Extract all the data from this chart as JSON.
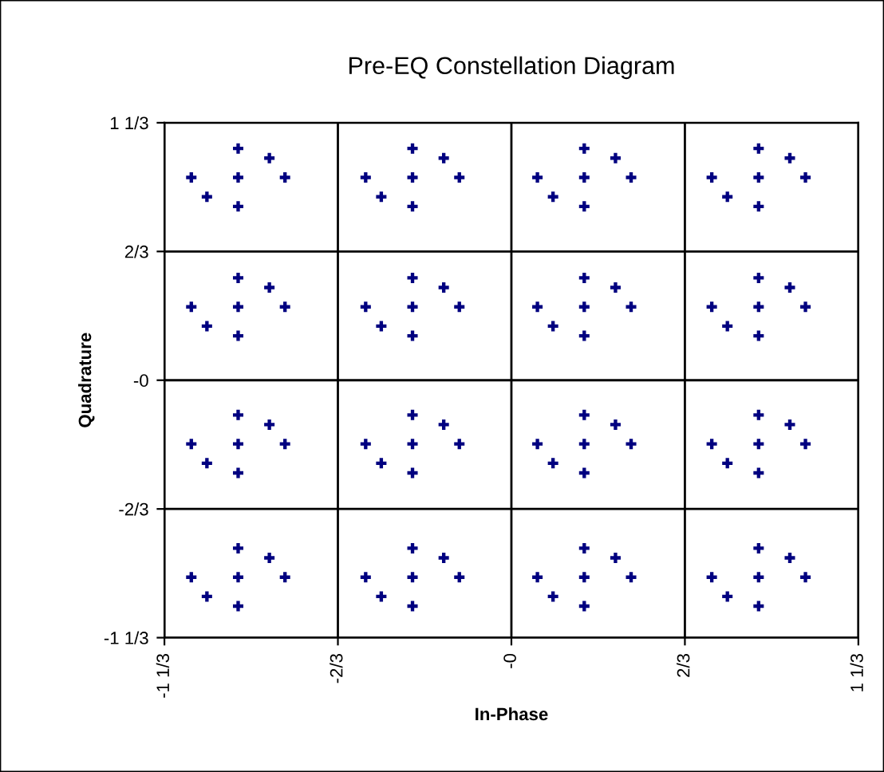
{
  "chart_data": {
    "type": "scatter",
    "title": "Pre-EQ Constellation Diagram",
    "xlabel": "In-Phase",
    "ylabel": "Quadrature",
    "xlim": [
      -1.3333,
      1.3333
    ],
    "ylim": [
      -1.3333,
      1.3333
    ],
    "xticks": [
      {
        "value": -1.3333,
        "label": "-1 1/3"
      },
      {
        "value": -0.6667,
        "label": "-2/3"
      },
      {
        "value": 0,
        "label": "-0"
      },
      {
        "value": 0.6667,
        "label": "2/3"
      },
      {
        "value": 1.3333,
        "label": "1 1/3"
      }
    ],
    "yticks": [
      {
        "value": -1.3333,
        "label": "-1 1/3"
      },
      {
        "value": -0.6667,
        "label": "-2/3"
      },
      {
        "value": 0,
        "label": "-0"
      },
      {
        "value": 0.6667,
        "label": "2/3"
      },
      {
        "value": 1.3333,
        "label": "1 1/3"
      }
    ],
    "grid": true,
    "marker": "cross",
    "legend": false,
    "series": [
      {
        "color": "#000080",
        "x": [
          -1.05,
          -1.23,
          -0.87,
          -1.05,
          -1.05,
          -0.93,
          -1.17,
          -0.38,
          -0.56,
          -0.2,
          -0.38,
          -0.38,
          -0.26,
          -0.5,
          0.28,
          0.1,
          0.46,
          0.28,
          0.28,
          0.4,
          0.16,
          0.95,
          0.77,
          1.13,
          0.95,
          0.95,
          1.07,
          0.83,
          -1.05,
          -1.23,
          -0.87,
          -1.05,
          -1.05,
          -0.93,
          -1.17,
          -0.38,
          -0.56,
          -0.2,
          -0.38,
          -0.38,
          -0.26,
          -0.5,
          0.28,
          0.1,
          0.46,
          0.28,
          0.28,
          0.4,
          0.16,
          0.95,
          0.77,
          1.13,
          0.95,
          0.95,
          1.07,
          0.83,
          -1.05,
          -1.23,
          -0.87,
          -1.05,
          -1.05,
          -0.93,
          -1.17,
          -0.38,
          -0.56,
          -0.2,
          -0.38,
          -0.38,
          -0.26,
          -0.5,
          0.28,
          0.1,
          0.46,
          0.28,
          0.28,
          0.4,
          0.16,
          0.95,
          0.77,
          1.13,
          0.95,
          0.95,
          1.07,
          0.83,
          -1.05,
          -1.23,
          -0.87,
          -1.05,
          -1.05,
          -0.93,
          -1.17,
          -0.38,
          -0.56,
          -0.2,
          -0.38,
          -0.38,
          -0.26,
          -0.5,
          0.28,
          0.1,
          0.46,
          0.28,
          0.28,
          0.4,
          0.16,
          0.95,
          0.77,
          1.13,
          0.95,
          0.95,
          1.07,
          0.83
        ],
        "values": [
          1.05,
          1.05,
          1.05,
          1.2,
          0.9,
          1.15,
          0.95,
          1.05,
          1.05,
          1.05,
          1.2,
          0.9,
          1.15,
          0.95,
          1.05,
          1.05,
          1.05,
          1.2,
          0.9,
          1.15,
          0.95,
          1.05,
          1.05,
          1.05,
          1.2,
          0.9,
          1.15,
          0.95,
          0.38,
          0.38,
          0.38,
          0.53,
          0.23,
          0.48,
          0.28,
          0.38,
          0.38,
          0.38,
          0.53,
          0.23,
          0.48,
          0.28,
          0.38,
          0.38,
          0.38,
          0.53,
          0.23,
          0.48,
          0.28,
          0.38,
          0.38,
          0.38,
          0.53,
          0.23,
          0.48,
          0.28,
          -0.33,
          -0.33,
          -0.33,
          -0.18,
          -0.48,
          -0.23,
          -0.43,
          -0.33,
          -0.33,
          -0.33,
          -0.18,
          -0.48,
          -0.23,
          -0.43,
          -0.33,
          -0.33,
          -0.33,
          -0.18,
          -0.48,
          -0.23,
          -0.43,
          -0.33,
          -0.33,
          -0.33,
          -0.18,
          -0.48,
          -0.23,
          -0.43,
          -1.02,
          -1.02,
          -1.02,
          -0.87,
          -1.17,
          -0.92,
          -1.12,
          -1.02,
          -1.02,
          -1.02,
          -0.87,
          -1.17,
          -0.92,
          -1.12,
          -1.02,
          -1.02,
          -1.02,
          -0.87,
          -1.17,
          -0.92,
          -1.12,
          -1.02,
          -1.02,
          -1.02,
          -0.87,
          -1.17,
          -0.92,
          -1.12
        ]
      }
    ]
  }
}
